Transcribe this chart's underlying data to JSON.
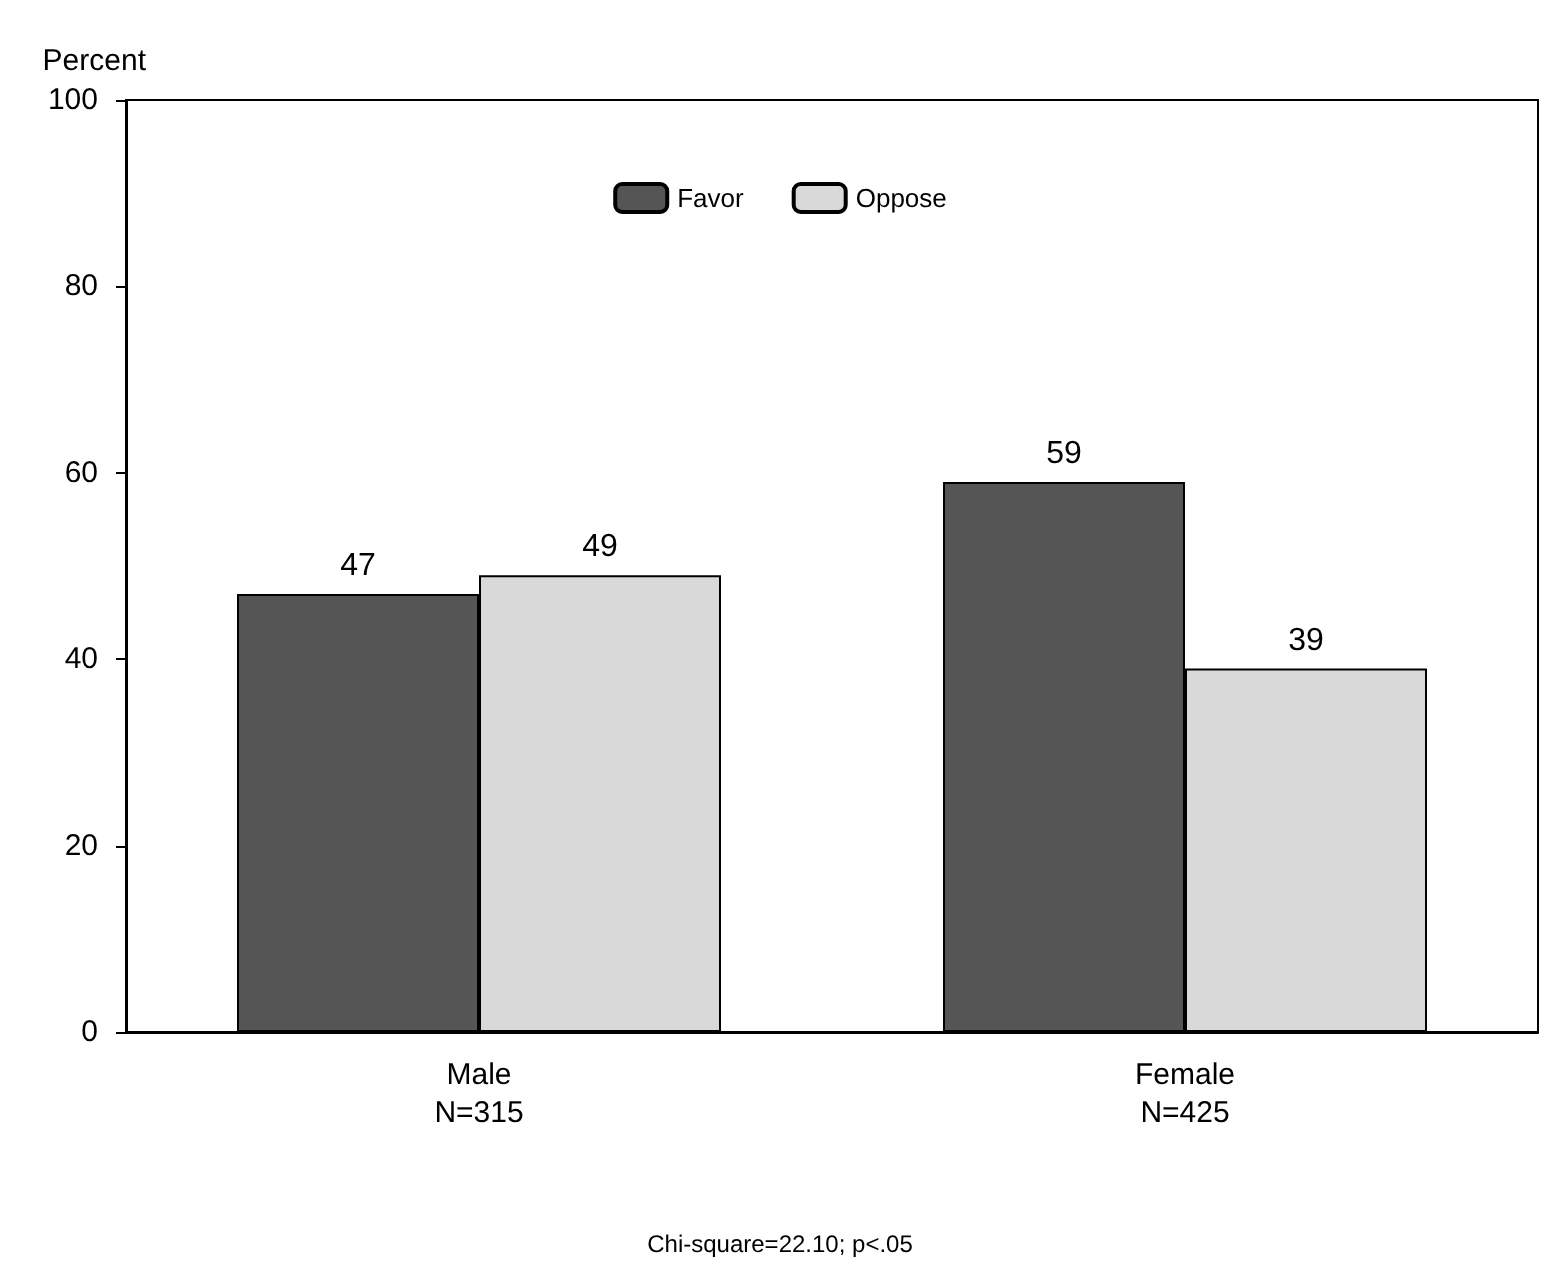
{
  "chart_data": {
    "type": "bar",
    "ylabel": "Percent",
    "categories": [
      "Male\nN=315",
      "Female\nN=425"
    ],
    "series": [
      {
        "name": "Favor",
        "color": "#555555",
        "values": [
          47,
          59
        ]
      },
      {
        "name": "Oppose",
        "color": "#d9d9d9",
        "values": [
          49,
          39
        ]
      }
    ],
    "ylim": [
      0,
      100
    ],
    "yticks": [
      0,
      20,
      40,
      60,
      80,
      100
    ],
    "grid": false,
    "legend": "top",
    "data_labels": true,
    "annotations": [
      "Chi-square=22.10; p<.05"
    ]
  }
}
